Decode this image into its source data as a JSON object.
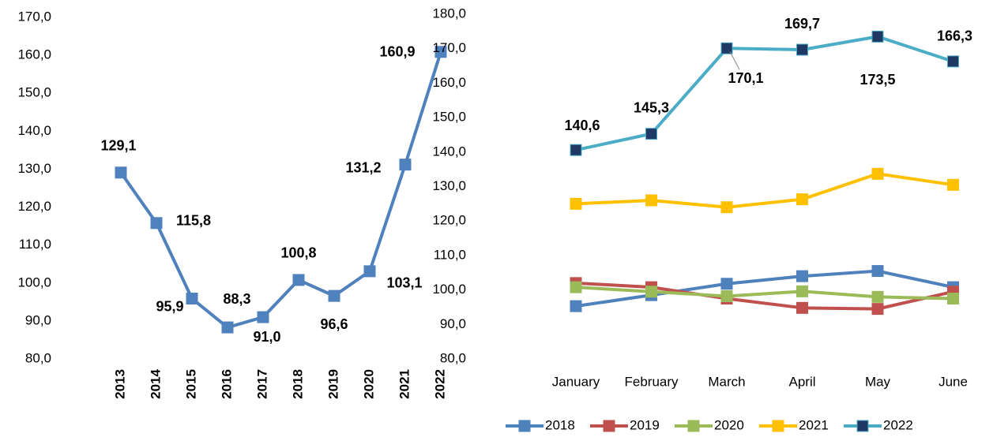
{
  "chart_data": [
    {
      "type": "line",
      "categories": [
        "2013",
        "2014",
        "2015",
        "2016",
        "2017",
        "2018",
        "2019",
        "2020",
        "2021",
        "2022"
      ],
      "values": [
        129.1,
        115.8,
        95.9,
        88.3,
        91.0,
        100.8,
        96.6,
        103.1,
        131.2,
        160.9
      ],
      "value_labels": [
        "129,1",
        "115,8",
        "95,9",
        "88,3",
        "91,0",
        "100,8",
        "96,6",
        "103,1",
        "131,2",
        "160,9"
      ],
      "color": "#4f81bd",
      "ylim": [
        80,
        170
      ],
      "yticks": [
        {
          "value": 80,
          "label": "80,0"
        },
        {
          "value": 90,
          "label": "90,0"
        },
        {
          "value": 100,
          "label": "100,0"
        },
        {
          "value": 110,
          "label": "110,0"
        },
        {
          "value": 120,
          "label": "120,0"
        },
        {
          "value": 130,
          "label": "130,0"
        },
        {
          "value": 140,
          "label": "140,0"
        },
        {
          "value": 150,
          "label": "150,0"
        },
        {
          "value": 160,
          "label": "160,0"
        },
        {
          "value": 170,
          "label": "170,0"
        }
      ]
    },
    {
      "type": "line",
      "categories": [
        "January",
        "February",
        "March",
        "April",
        "May",
        "June"
      ],
      "series": [
        {
          "name": "2018",
          "color": "#4f81bd",
          "values": [
            95.3,
            98.5,
            101.8,
            104.0,
            105.5,
            100.8
          ]
        },
        {
          "name": "2019",
          "color": "#c0504d",
          "values": [
            102.0,
            100.8,
            97.5,
            94.8,
            94.5,
            99.5
          ]
        },
        {
          "name": "2020",
          "color": "#9bbb59",
          "values": [
            100.8,
            99.5,
            98.2,
            99.6,
            98.0,
            97.5
          ]
        },
        {
          "name": "2021",
          "color": "#ffc000",
          "values": [
            125.0,
            126.0,
            124.0,
            126.3,
            133.7,
            130.5
          ]
        },
        {
          "name": "2022",
          "color": "#4bacc6",
          "marker_color": "#1f3864",
          "values": [
            140.6,
            145.3,
            170.1,
            169.7,
            173.5,
            166.3
          ],
          "value_labels": [
            "140,6",
            "145,3",
            "170,1",
            "169,7",
            "173,5",
            "166,3"
          ]
        }
      ],
      "legend": "bottom",
      "ylim": [
        80,
        180
      ],
      "yticks": [
        {
          "value": 80,
          "label": "80,0"
        },
        {
          "value": 90,
          "label": "90,0"
        },
        {
          "value": 100,
          "label": "100,0"
        },
        {
          "value": 110,
          "label": "110,0"
        },
        {
          "value": 120,
          "label": "120,0"
        },
        {
          "value": 130,
          "label": "130,0"
        },
        {
          "value": 140,
          "label": "140,0"
        },
        {
          "value": 150,
          "label": "150,0"
        },
        {
          "value": 160,
          "label": "160,0"
        },
        {
          "value": 170,
          "label": "170,0"
        },
        {
          "value": 180,
          "label": "180,0"
        }
      ]
    }
  ]
}
